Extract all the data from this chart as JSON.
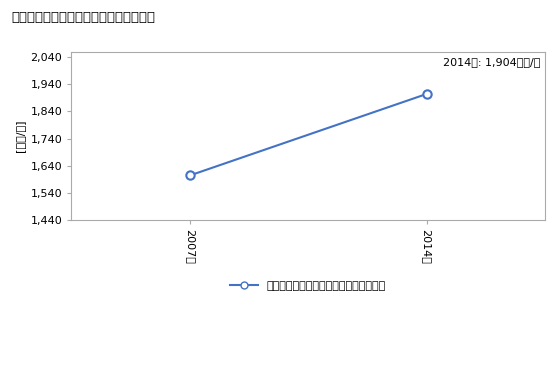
{
  "title": "商業の従業者一人当たり年間商品販売額",
  "ylabel": "[万円/人]",
  "annotation": "2014年: 1,904万円/人",
  "years": [
    2007,
    2014
  ],
  "values": [
    1604,
    1904
  ],
  "ylim": [
    1440,
    2060
  ],
  "yticks": [
    1440,
    1540,
    1640,
    1740,
    1840,
    1940,
    2040
  ],
  "line_color": "#4472C4",
  "marker_color": "#4472C4",
  "legend_label": "商業の従業者一人当たり年間商品販売額",
  "bg_color": "#FFFFFF",
  "plot_bg_color": "#FFFFFF",
  "border_color": "#AAAAAA"
}
